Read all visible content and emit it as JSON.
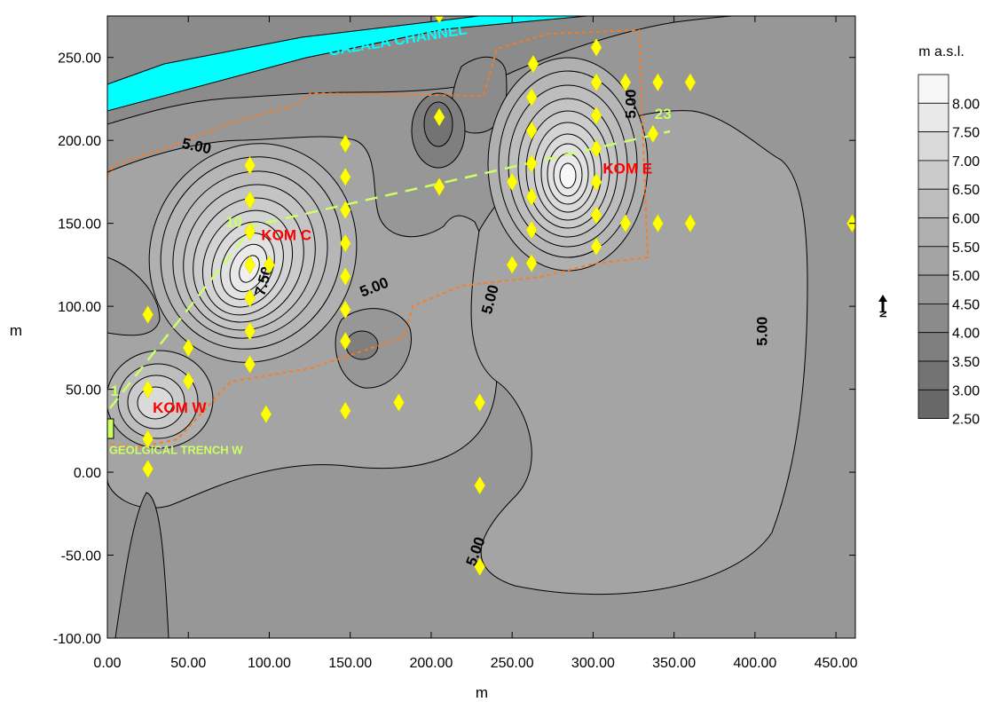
{
  "chart_data": {
    "type": "contour",
    "xlabel": "m",
    "ylabel": "m",
    "xlim": [
      0,
      462
    ],
    "ylim": [
      -100,
      275
    ],
    "x_ticks": [
      0,
      50,
      100,
      150,
      200,
      250,
      300,
      350,
      400,
      450
    ],
    "y_ticks": [
      -100,
      -50,
      0,
      50,
      100,
      150,
      200,
      250
    ],
    "x_tick_labels": [
      "0.00",
      "50.00",
      "100.00",
      "150.00",
      "200.00",
      "250.00",
      "300.00",
      "350.00",
      "400.00",
      "450.00"
    ],
    "y_tick_labels": [
      "-100.00",
      "-50.00",
      "0.00",
      "50.00",
      "100.00",
      "150.00",
      "200.00",
      "250.00"
    ],
    "legend": {
      "title": "m a.s.l.",
      "levels": [
        "8.00",
        "7.50",
        "7.00",
        "6.50",
        "6.00",
        "5.50",
        "5.00",
        "4.50",
        "4.00",
        "3.50",
        "3.00",
        "2.50"
      ],
      "colors": [
        "#f7f7f7",
        "#e9e9e9",
        "#dadada",
        "#cbcbcb",
        "#bdbdbd",
        "#b0b0b0",
        "#a4a4a4",
        "#979797",
        "#8b8b8b",
        "#7f7f7f",
        "#737373",
        "#686868"
      ]
    },
    "contour_labels": [
      {
        "text": "5.00",
        "x": 55,
        "y": 196,
        "angle": 12
      },
      {
        "text": "7.50",
        "x": 97,
        "y": 115,
        "angle": -75
      },
      {
        "text": "5.00",
        "x": 165,
        "y": 111,
        "angle": -22
      },
      {
        "text": "5.00",
        "x": 237,
        "y": 104,
        "angle": -75
      },
      {
        "text": "5.00",
        "x": 324,
        "y": 222,
        "angle": -90
      },
      {
        "text": "5.00",
        "x": 405,
        "y": 85,
        "angle": -90
      },
      {
        "text": "5.00",
        "x": 228,
        "y": -48,
        "angle": -70
      }
    ],
    "site_labels": [
      {
        "text": "KOM C",
        "x": 95,
        "y": 140,
        "color": "#ff0000"
      },
      {
        "text": "KOM E",
        "x": 306,
        "y": 180,
        "color": "#ff0000"
      },
      {
        "text": "KOM W",
        "x": 28,
        "y": 36,
        "color": "#ff0000"
      },
      {
        "text": "GAZALA CHANNEL",
        "x": 137,
        "y": 251,
        "color": "#00ffff",
        "angle": -9
      },
      {
        "text": "GEOLGICAL TRENCH W",
        "x": 1,
        "y": 11,
        "color": "#ccff66"
      }
    ],
    "profile_labels": [
      {
        "text": "1",
        "x": 2,
        "y": 46
      },
      {
        "text": "10",
        "x": 73,
        "y": 148
      },
      {
        "text": "23",
        "x": 338,
        "y": 213
      }
    ],
    "sample_points": [
      [
        205,
        276
      ],
      [
        302,
        256
      ],
      [
        263,
        246
      ],
      [
        262,
        226
      ],
      [
        302,
        235
      ],
      [
        320,
        235
      ],
      [
        340,
        235
      ],
      [
        360,
        235
      ],
      [
        205,
        214
      ],
      [
        302,
        215
      ],
      [
        262,
        206
      ],
      [
        337,
        204
      ],
      [
        147,
        198
      ],
      [
        88,
        185
      ],
      [
        302,
        195
      ],
      [
        262,
        186
      ],
      [
        147,
        178
      ],
      [
        250,
        175
      ],
      [
        205,
        172
      ],
      [
        302,
        175
      ],
      [
        262,
        166
      ],
      [
        88,
        164
      ],
      [
        147,
        158
      ],
      [
        302,
        155
      ],
      [
        262,
        146
      ],
      [
        320,
        150
      ],
      [
        340,
        150
      ],
      [
        360,
        150
      ],
      [
        460,
        150
      ],
      [
        88,
        145
      ],
      [
        147,
        138
      ],
      [
        302,
        136
      ],
      [
        88,
        125
      ],
      [
        100,
        125
      ],
      [
        250,
        125
      ],
      [
        262,
        126
      ],
      [
        147,
        118
      ],
      [
        88,
        105
      ],
      [
        147,
        98
      ],
      [
        25,
        95
      ],
      [
        88,
        85
      ],
      [
        147,
        79
      ],
      [
        50,
        75
      ],
      [
        88,
        65
      ],
      [
        50,
        55
      ],
      [
        25,
        50
      ],
      [
        180,
        42
      ],
      [
        230,
        42
      ],
      [
        147,
        37
      ],
      [
        98,
        35
      ],
      [
        25,
        20
      ],
      [
        25,
        2
      ],
      [
        230,
        -8
      ],
      [
        230,
        -57
      ]
    ]
  }
}
